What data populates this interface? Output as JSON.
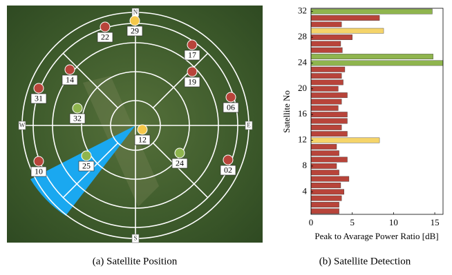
{
  "skyplot": {
    "directions": {
      "north": "N",
      "east": "E",
      "south": "S",
      "west": "W"
    },
    "satellites": [
      {
        "label": "29",
        "color": "#f5c84a"
      },
      {
        "label": "22",
        "color": "#b8443a"
      },
      {
        "label": "17",
        "color": "#b8443a"
      },
      {
        "label": "19",
        "color": "#b8443a"
      },
      {
        "label": "14",
        "color": "#b8443a"
      },
      {
        "label": "31",
        "color": "#b8443a"
      },
      {
        "label": "06",
        "color": "#b8443a"
      },
      {
        "label": "32",
        "color": "#8fb54e"
      },
      {
        "label": "12",
        "color": "#f5c84a"
      },
      {
        "label": "24",
        "color": "#8fb54e"
      },
      {
        "label": "25",
        "color": "#8fb54e"
      },
      {
        "label": "10",
        "color": "#b8443a"
      },
      {
        "label": "02",
        "color": "#b8443a"
      }
    ],
    "caption": "(a) Satellite Position"
  },
  "chart_data": {
    "type": "barh",
    "caption": "(b) Satellite Detection",
    "x_label": "Peak to Avarage Power Ratio [dB]",
    "y_label": "Satellite No",
    "y": [
      1,
      2,
      3,
      4,
      5,
      6,
      7,
      8,
      9,
      10,
      11,
      12,
      13,
      14,
      15,
      16,
      17,
      18,
      19,
      20,
      21,
      22,
      23,
      24,
      25,
      26,
      27,
      28,
      29,
      30,
      31,
      32
    ],
    "values": [
      3.4,
      3.4,
      3.7,
      4,
      3.6,
      4.6,
      3.4,
      3.1,
      4.4,
      3.4,
      3.1,
      8.3,
      4.4,
      3.7,
      4.4,
      4.4,
      3.3,
      3.7,
      4.4,
      3.3,
      3.9,
      3.7,
      4.1,
      16,
      14.8,
      3.8,
      3.6,
      5,
      8.8,
      3.7,
      8.3,
      14.7
    ],
    "colors": [
      "#b8443a",
      "#b8443a",
      "#b8443a",
      "#b8443a",
      "#b8443a",
      "#b8443a",
      "#b8443a",
      "#b8443a",
      "#b8443a",
      "#b8443a",
      "#b8443a",
      "#f5d46a",
      "#b8443a",
      "#b8443a",
      "#b8443a",
      "#b8443a",
      "#b8443a",
      "#b8443a",
      "#b8443a",
      "#b8443a",
      "#b8443a",
      "#b8443a",
      "#b8443a",
      "#8fb54e",
      "#8fb54e",
      "#b8443a",
      "#b8443a",
      "#b8443a",
      "#f5d46a",
      "#b8443a",
      "#b8443a",
      "#8fb54e"
    ],
    "xlim": [
      0,
      16
    ],
    "xticks": [
      0,
      5,
      10,
      15
    ],
    "ylim": [
      0.5,
      32.5
    ],
    "yticks": [
      4,
      8,
      12,
      16,
      20,
      24,
      28,
      32
    ]
  }
}
